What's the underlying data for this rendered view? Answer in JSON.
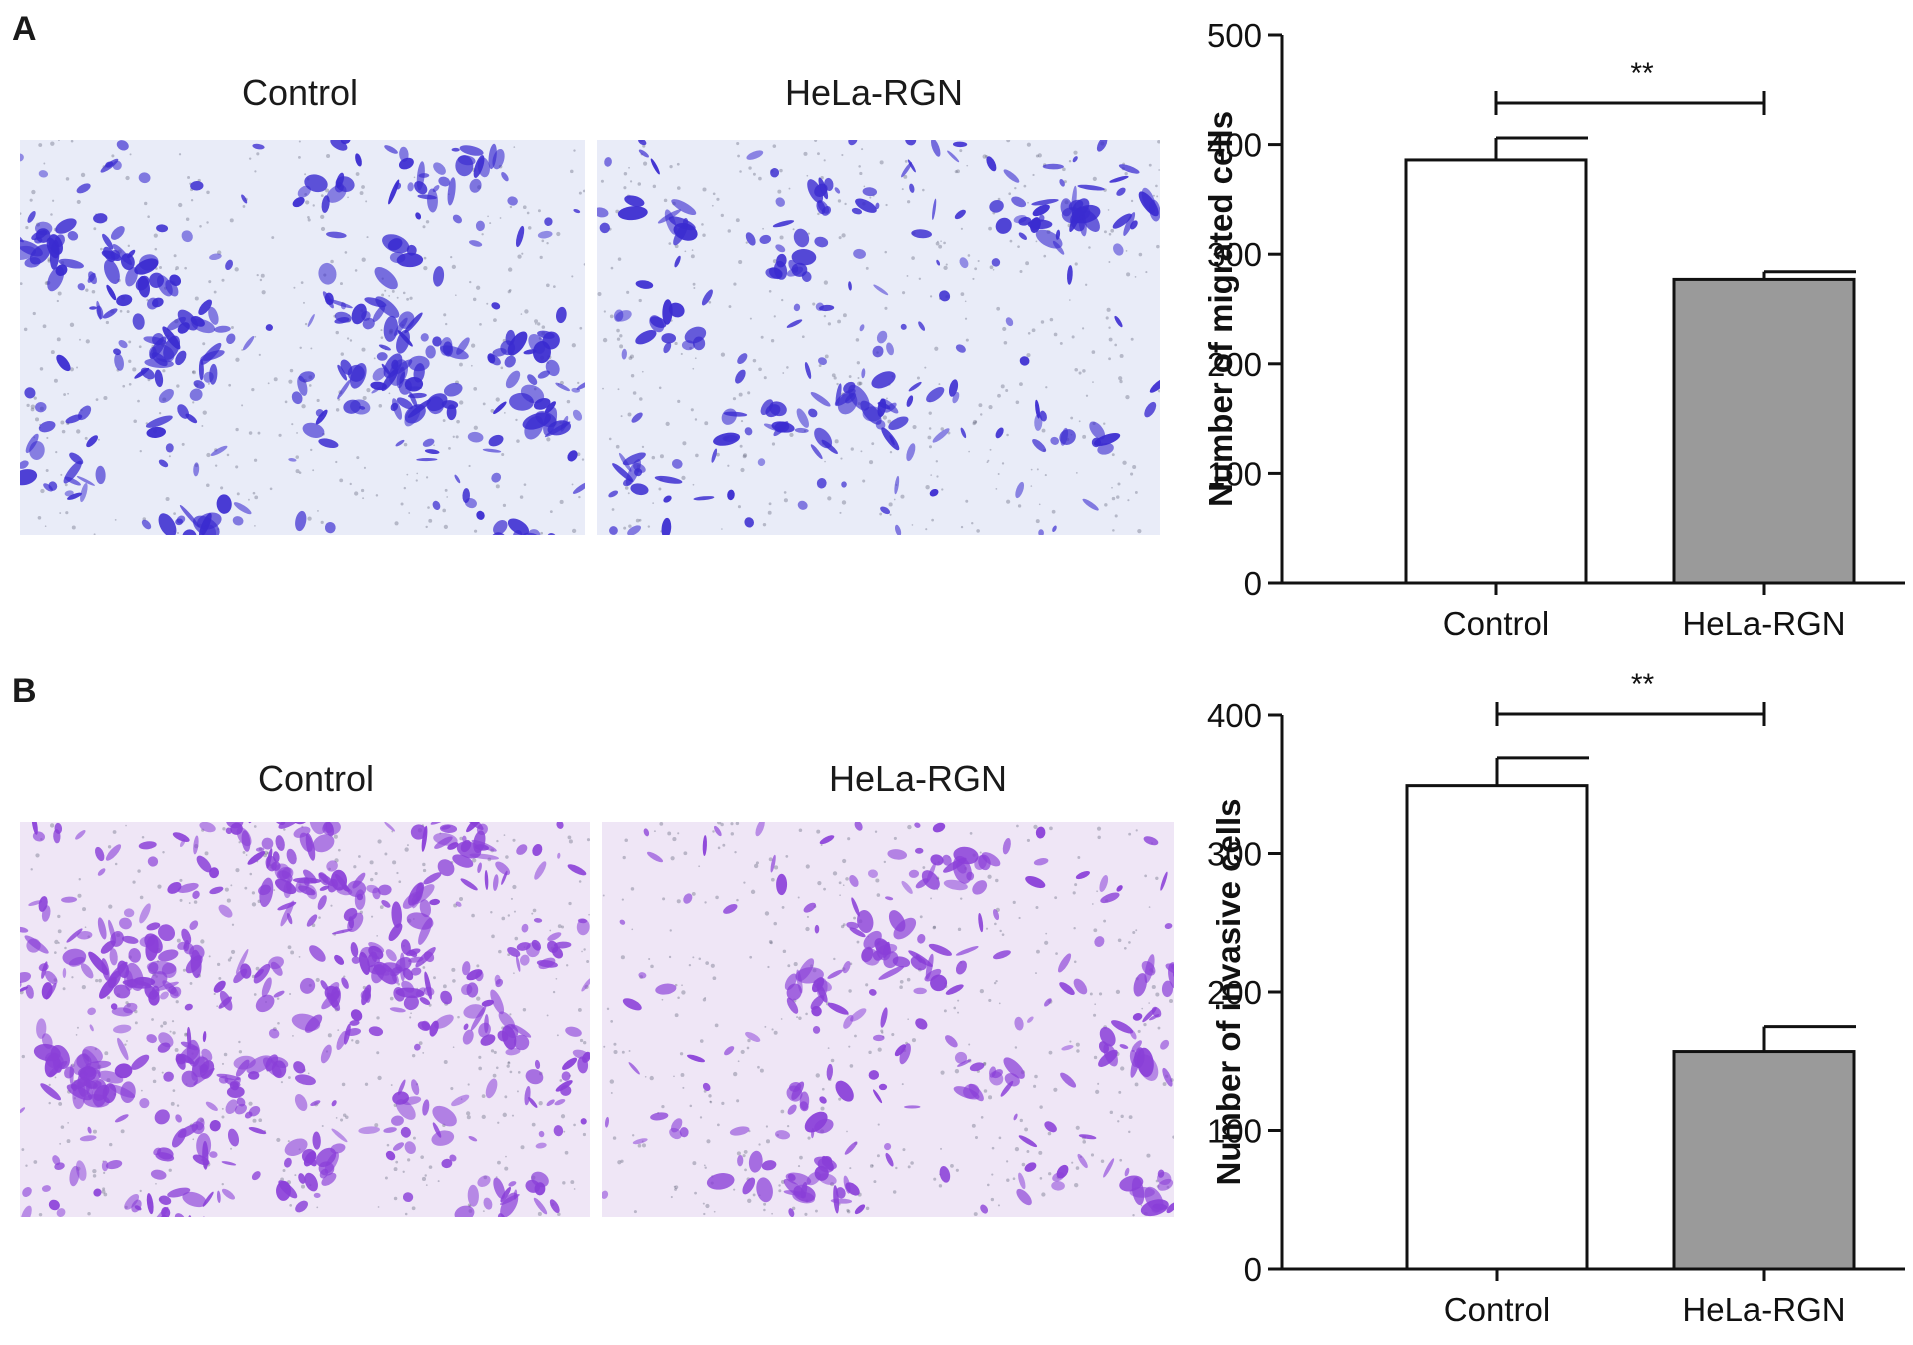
{
  "panels": [
    {
      "letter": "A",
      "images": [
        {
          "label": "Control"
        },
        {
          "label": "HeLa-RGN"
        }
      ]
    },
    {
      "letter": "B",
      "images": [
        {
          "label": "Control"
        },
        {
          "label": "HeLa-RGN"
        }
      ]
    }
  ],
  "colors": {
    "stain_migration": "#3a2bd0",
    "stain_invasion": "#8a3fd8",
    "bg_migration": "#e9ecf8",
    "bg_invasion": "#efe6f6",
    "bar_control": "#ffffff",
    "bar_rgn": "#9a9a9a"
  },
  "chart_data": [
    {
      "type": "bar",
      "categories": [
        "Control",
        "HeLa-RGN"
      ],
      "values": [
        386,
        277
      ],
      "errors": [
        20,
        7
      ],
      "ylabel": "Number of migrated cells",
      "ylim": [
        0,
        500
      ],
      "yticks": [
        0,
        100,
        200,
        300,
        400,
        500
      ],
      "significance": "**"
    },
    {
      "type": "bar",
      "categories": [
        "Control",
        "HeLa-RGN"
      ],
      "values": [
        349,
        157
      ],
      "errors": [
        20,
        18
      ],
      "ylabel": "Number of invasive cells",
      "ylim": [
        0,
        400
      ],
      "yticks": [
        0,
        100,
        200,
        300,
        400
      ],
      "significance": "**"
    }
  ]
}
